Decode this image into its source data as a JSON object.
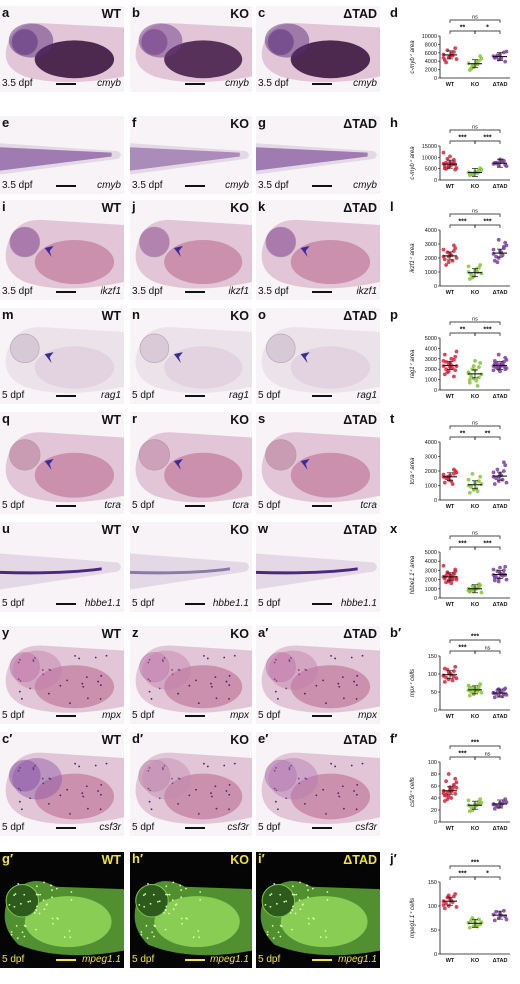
{
  "colors": {
    "WT": "#d7263d",
    "KO": "#86c43a",
    "ΔTAD": "#7b3fa0"
  },
  "rows": [
    {
      "panels": [
        {
          "label": "a",
          "genotype": "WT",
          "stage": "3.5 dpf",
          "gene": "cmyb",
          "kind": "embryo-ish",
          "stain": "#5a2d7a",
          "yolk": "#3d1640"
        },
        {
          "label": "b",
          "genotype": "KO",
          "stage": "",
          "gene": "cmyb",
          "kind": "embryo-ish",
          "stain": "#6d3a85",
          "yolk": "#48204c"
        },
        {
          "label": "c",
          "genotype": "ΔTAD",
          "stage": "3.5 dpf",
          "gene": "cmyb",
          "kind": "embryo-ish",
          "stain": "#5a2d7a",
          "yolk": "#3d1640"
        }
      ],
      "plot": {
        "label": "d",
        "ylabel": "c-myb⁺ area",
        "ymax": 10000,
        "yticks": [
          "0",
          "2000",
          "4000",
          "6000",
          "8000",
          "10000"
        ],
        "sig": [
          {
            "pair": "WT-KO",
            "text": "**"
          },
          {
            "pair": "KO-ΔTAD",
            "text": "*"
          },
          {
            "pair": "WT-ΔTAD",
            "text": "ns"
          }
        ],
        "data": {
          "WT": [
            5600,
            4900,
            6200,
            4300,
            5100,
            7100,
            3700,
            5900,
            4500,
            6600,
            5300,
            4800
          ],
          "KO": [
            3500,
            2600,
            4100,
            1900,
            3000,
            5200,
            2200,
            3800,
            4600,
            2900,
            3300
          ],
          "ΔTAD": [
            5200,
            4400,
            6100,
            4800,
            5600,
            3900,
            5000,
            4700,
            6300,
            5400
          ]
        },
        "means": {
          "WT": 5500,
          "KO": 3400,
          "ΔTAD": 5100
        }
      }
    },
    {
      "panels": [
        {
          "label": "e",
          "genotype": "",
          "stage": "3.5 dpf",
          "gene": "cmyb",
          "kind": "tail",
          "stain": "#7a4a95"
        },
        {
          "label": "f",
          "genotype": "KO",
          "stage": "3.5 dpf",
          "gene": "cmyb",
          "kind": "tail",
          "stain": "#8b63a3"
        },
        {
          "label": "g",
          "genotype": "ΔTAD",
          "stage": "3.5 dpf",
          "gene": "cmyb",
          "kind": "tail",
          "stain": "#7a4a95"
        }
      ],
      "plot": {
        "label": "h",
        "ylabel": "c-myb⁺ area",
        "ymax": 15000,
        "yticks": [
          "0",
          "5000",
          "10000",
          "15000"
        ],
        "sig": [
          {
            "pair": "WT-KO",
            "text": "***"
          },
          {
            "pair": "KO-ΔTAD",
            "text": "***"
          },
          {
            "pair": "WT-ΔTAD",
            "text": "ns"
          }
        ],
        "data": {
          "WT": [
            7200,
            5600,
            8900,
            6100,
            10400,
            4600,
            7600,
            6600,
            5300,
            9300,
            7000,
            12100,
            6200,
            8000,
            5100,
            7800,
            6800,
            4900
          ],
          "KO": [
            3300,
            2600,
            4100,
            2100,
            3700,
            5200,
            2900,
            3500,
            4500,
            2500,
            3100
          ],
          "ΔTAD": [
            7100,
            6300,
            8400,
            7600,
            9100,
            6700,
            7300,
            8000,
            6100,
            7700,
            8700
          ]
        },
        "means": {
          "WT": 7000,
          "KO": 3300,
          "ΔTAD": 7400
        }
      }
    },
    {
      "panels": [
        {
          "label": "i",
          "genotype": "WT",
          "stage": "3.5 dpf",
          "gene": "ikzf1",
          "kind": "head",
          "stain": "#7e3d8a",
          "arrow": true
        },
        {
          "label": "j",
          "genotype": "KO",
          "stage": "3.5 dpf",
          "gene": "ikzf1",
          "kind": "head",
          "stain": "#8d4d90",
          "arrow": true
        },
        {
          "label": "k",
          "genotype": "ΔTAD",
          "stage": "3.5 dpf",
          "gene": "ikzf1",
          "kind": "head",
          "stain": "#7e3d8a",
          "arrow": true
        }
      ],
      "plot": {
        "label": "l",
        "ylabel": "ikzf1⁺ area",
        "ymax": 4000,
        "yticks": [
          "0",
          "1000",
          "2000",
          "3000",
          "4000"
        ],
        "sig": [
          {
            "pair": "WT-KO",
            "text": "***"
          },
          {
            "pair": "KO-ΔTAD",
            "text": "***"
          },
          {
            "pair": "WT-ΔTAD",
            "text": "ns"
          }
        ],
        "data": {
          "WT": [
            2100,
            1700,
            2500,
            1900,
            2300,
            2700,
            1500,
            2200,
            2000,
            2400,
            1800,
            2600,
            2100,
            2900
          ],
          "KO": [
            1000,
            700,
            1300,
            500,
            1100,
            1500,
            800,
            1200,
            900,
            600,
            1000,
            1400
          ],
          "ΔTAD": [
            2300,
            2000,
            2700,
            1800,
            2500,
            3100,
            2100,
            2400,
            2900,
            1700,
            2200,
            2600,
            3300,
            2800
          ]
        },
        "means": {
          "WT": 2150,
          "KO": 950,
          "ΔTAD": 2350
        }
      }
    },
    {
      "panels": [
        {
          "label": "m",
          "genotype": "WT",
          "stage": "5 dpf",
          "gene": "rag1",
          "kind": "pale-head",
          "stain": "#c9b6c6",
          "arrow": true
        },
        {
          "label": "n",
          "genotype": "KO",
          "stage": "5 dpf",
          "gene": "rag1",
          "kind": "pale-head",
          "stain": "#cdb8c9",
          "arrow": true
        },
        {
          "label": "o",
          "genotype": "ΔTAD",
          "stage": "5 dpf",
          "gene": "rag1",
          "kind": "pale-head",
          "stain": "#c9b6c6",
          "arrow": true
        }
      ],
      "plot": {
        "label": "p",
        "ylabel": "rag1⁺ area",
        "ymax": 5000,
        "yticks": [
          "0",
          "1000",
          "2000",
          "3000",
          "4000",
          "5000"
        ],
        "sig": [
          {
            "pair": "WT-KO",
            "text": "**"
          },
          {
            "pair": "KO-ΔTAD",
            "text": "***"
          },
          {
            "pair": "WT-ΔTAD",
            "text": "ns"
          }
        ],
        "data": {
          "WT": [
            2300,
            1800,
            2900,
            1500,
            2600,
            3200,
            2000,
            2400,
            3700,
            1700,
            2100,
            2800,
            2500,
            1300,
            3400,
            2200,
            1900,
            2700,
            3000,
            2300
          ],
          "KO": [
            1600,
            1100,
            2200,
            700,
            1900,
            2600,
            1300,
            900,
            1500,
            2000,
            400,
            1700,
            2300,
            1200,
            1000,
            2800
          ],
          "ΔTAD": [
            2300,
            2000,
            2700,
            2500,
            1800,
            3100,
            2200,
            2400,
            2900,
            2100,
            2600,
            1900,
            3400,
            2300,
            2800,
            2200,
            2000,
            2600,
            2400,
            2100,
            2500
          ]
        },
        "means": {
          "WT": 2350,
          "KO": 1550,
          "ΔTAD": 2350
        }
      }
    },
    {
      "panels": [
        {
          "label": "q",
          "genotype": "WT",
          "stage": "5 dpf",
          "gene": "tcra",
          "kind": "head",
          "stain": "#b87a98",
          "arrow": true
        },
        {
          "label": "r",
          "genotype": "KO",
          "stage": "5 dpf",
          "gene": "tcra",
          "kind": "head",
          "stain": "#bd83a0",
          "arrow": true
        },
        {
          "label": "s",
          "genotype": "ΔTAD",
          "stage": "5 dpf",
          "gene": "tcra",
          "kind": "head",
          "stain": "#b87a98",
          "arrow": true
        }
      ],
      "plot": {
        "label": "t",
        "ylabel": "tcra⁺ area",
        "ymax": 4000,
        "yticks": [
          "0",
          "1000",
          "2000",
          "3000",
          "4000"
        ],
        "sig": [
          {
            "pair": "WT-KO",
            "text": "**"
          },
          {
            "pair": "KO-ΔTAD",
            "text": "**"
          },
          {
            "pair": "WT-ΔTAD",
            "text": "ns"
          }
        ],
        "data": {
          "WT": [
            1600,
            1400,
            1800,
            1200,
            1700,
            2000,
            1500,
            1300,
            1900,
            1600,
            1100,
            1750,
            1450,
            2100
          ],
          "KO": [
            1000,
            700,
            1300,
            500,
            1200,
            1600,
            900,
            800,
            1100,
            1800,
            600,
            1400
          ],
          "ΔTAD": [
            1600,
            1300,
            2000,
            1100,
            1800,
            2400,
            1500,
            1700,
            1200,
            2100,
            1400,
            1900,
            1600,
            2600
          ]
        },
        "means": {
          "WT": 1600,
          "KO": 1050,
          "ΔTAD": 1650
        }
      }
    },
    {
      "panels": [
        {
          "label": "u",
          "genotype": "WT",
          "stage": "5 dpf",
          "gene": "hbbe1.1",
          "kind": "tail-line",
          "stain": "#4a2a78"
        },
        {
          "label": "v",
          "genotype": "KO",
          "stage": "5 dpf",
          "gene": "hbbe1.1",
          "kind": "tail-line",
          "stain": "#8a7aa6"
        },
        {
          "label": "w",
          "genotype": "ΔTAD",
          "stage": "5 dpf",
          "gene": "hbbe1.1",
          "kind": "tail-line",
          "stain": "#4a2a78"
        }
      ],
      "plot": {
        "label": "x",
        "ylabel": "hbbe1.1⁺ area",
        "ymax": 5000,
        "yticks": [
          "0",
          "1000",
          "2000",
          "3000",
          "4000",
          "5000"
        ],
        "sig": [
          {
            "pair": "WT-KO",
            "text": "***"
          },
          {
            "pair": "KO-ΔTAD",
            "text": "***"
          },
          {
            "pair": "WT-ΔTAD",
            "text": "ns"
          }
        ],
        "data": {
          "WT": [
            2300,
            1900,
            2700,
            2100,
            2500,
            3100,
            1700,
            2400,
            2000,
            2800,
            2200,
            3500,
            1800,
            2600,
            2300,
            2100,
            2900,
            2400,
            1600,
            2200,
            2700,
            2000
          ],
          "KO": [
            1000,
            800,
            1200,
            700,
            1100,
            1400,
            900,
            1000,
            600,
            1300,
            1100,
            800,
            950,
            1500,
            700,
            1050
          ],
          "ΔTAD": [
            2500,
            2100,
            3000,
            1900,
            2700,
            3400,
            2300,
            2600,
            2000,
            2900,
            2400,
            3100,
            1800,
            2600,
            2200,
            3300,
            2500
          ]
        },
        "means": {
          "WT": 2300,
          "KO": 1000,
          "ΔTAD": 2550
        }
      }
    },
    {
      "panels": [
        {
          "label": "y",
          "genotype": "WT",
          "stage": "5 dpf",
          "gene": "mpx",
          "kind": "dots",
          "stain": "#c37aaa"
        },
        {
          "label": "z",
          "genotype": "KO",
          "stage": "5 dpf",
          "gene": "mpx",
          "kind": "dots",
          "stain": "#c47ead"
        },
        {
          "label": "a′",
          "genotype": "ΔTAD",
          "stage": "5 dpf",
          "gene": "mpx",
          "kind": "dots",
          "stain": "#c37aaa"
        }
      ],
      "plot": {
        "label": "b′",
        "ylabel": "mpx⁺ cells",
        "ymax": 150,
        "yticks": [
          "0",
          "50",
          "100",
          "150"
        ],
        "sig": [
          {
            "pair": "WT-KO",
            "text": "***"
          },
          {
            "pair": "KO-ΔTAD",
            "text": "ns"
          },
          {
            "pair": "WT-ΔTAD",
            "text": "***"
          }
        ],
        "data": {
          "WT": [
            95,
            85,
            108,
            78,
            102,
            120,
            90,
            98,
            88,
            112,
            82,
            96,
            104,
            92,
            115
          ],
          "KO": [
            55,
            45,
            65,
            40,
            60,
            72,
            50,
            58,
            48,
            62,
            52,
            68,
            44,
            57,
            63,
            53
          ],
          "ΔTAD": [
            48,
            40,
            56,
            35,
            52,
            60,
            45,
            50,
            42,
            55,
            38,
            47,
            58,
            44
          ]
        },
        "means": {
          "WT": 98,
          "KO": 56,
          "ΔTAD": 47
        }
      }
    },
    {
      "panels": [
        {
          "label": "c′",
          "genotype": "WT",
          "stage": "5 dpf",
          "gene": "csf3r",
          "kind": "dots",
          "stain": "#8a55a6"
        },
        {
          "label": "d′",
          "genotype": "KO",
          "stage": "5 dpf",
          "gene": "csf3r",
          "kind": "dots",
          "stain": "#c28ab0"
        },
        {
          "label": "e′",
          "genotype": "ΔTAD",
          "stage": "5 dpf",
          "gene": "csf3r",
          "kind": "dots",
          "stain": "#b47ab4"
        }
      ],
      "plot": {
        "label": "f′",
        "ylabel": "csf3r⁺ cells",
        "ymax": 100,
        "yticks": [
          "0",
          "20",
          "40",
          "60",
          "80",
          "100"
        ],
        "sig": [
          {
            "pair": "WT-KO",
            "text": "***"
          },
          {
            "pair": "KO-ΔTAD",
            "text": "ns"
          },
          {
            "pair": "WT-ΔTAD",
            "text": "***"
          }
        ],
        "data": {
          "WT": [
            52,
            42,
            62,
            35,
            58,
            72,
            45,
            50,
            66,
            38,
            55,
            48,
            80,
            60,
            44,
            53,
            47,
            68,
            40,
            57,
            49
          ],
          "KO": [
            28,
            22,
            34,
            18,
            30,
            38,
            25,
            27,
            32,
            20,
            29,
            36,
            24,
            31
          ],
          "ΔTAD": [
            30,
            25,
            35,
            22,
            32,
            38,
            28,
            27,
            33,
            26,
            31,
            29
          ]
        },
        "means": {
          "WT": 52,
          "KO": 28,
          "ΔTAD": 30
        }
      }
    },
    {
      "panels": [
        {
          "label": "g′",
          "genotype": "WT",
          "stage": "5 dpf",
          "gene": "mpeg1.1",
          "kind": "fluor"
        },
        {
          "label": "h′",
          "genotype": "KO",
          "stage": "5 dpf",
          "gene": "mpeg1.1",
          "kind": "fluor"
        },
        {
          "label": "i′",
          "genotype": "ΔTAD",
          "stage": "5 dpf",
          "gene": "mpeg1.1",
          "kind": "fluor"
        }
      ],
      "plot": {
        "label": "j′",
        "ylabel": "mpeg1.1⁺ cells",
        "ymax": 150,
        "yticks": [
          "0",
          "50",
          "100",
          "150"
        ],
        "sig": [
          {
            "pair": "WT-KO",
            "text": "***"
          },
          {
            "pair": "KO-ΔTAD",
            "text": "*"
          },
          {
            "pair": "WT-ΔTAD",
            "text": "***"
          }
        ],
        "data": {
          "WT": [
            110,
            100,
            120,
            95,
            115,
            125,
            105,
            112,
            98,
            118,
            108,
            102,
            122
          ],
          "KO": [
            65,
            58,
            72,
            55,
            68,
            62,
            70,
            60,
            66,
            75,
            57
          ],
          "ΔTAD": [
            82,
            75,
            90,
            70,
            85,
            78,
            88,
            80,
            72
          ]
        },
        "means": {
          "WT": 110,
          "KO": 64,
          "ΔTAD": 81
        }
      }
    }
  ],
  "categories": [
    "WT",
    "KO",
    "ΔTAD"
  ]
}
